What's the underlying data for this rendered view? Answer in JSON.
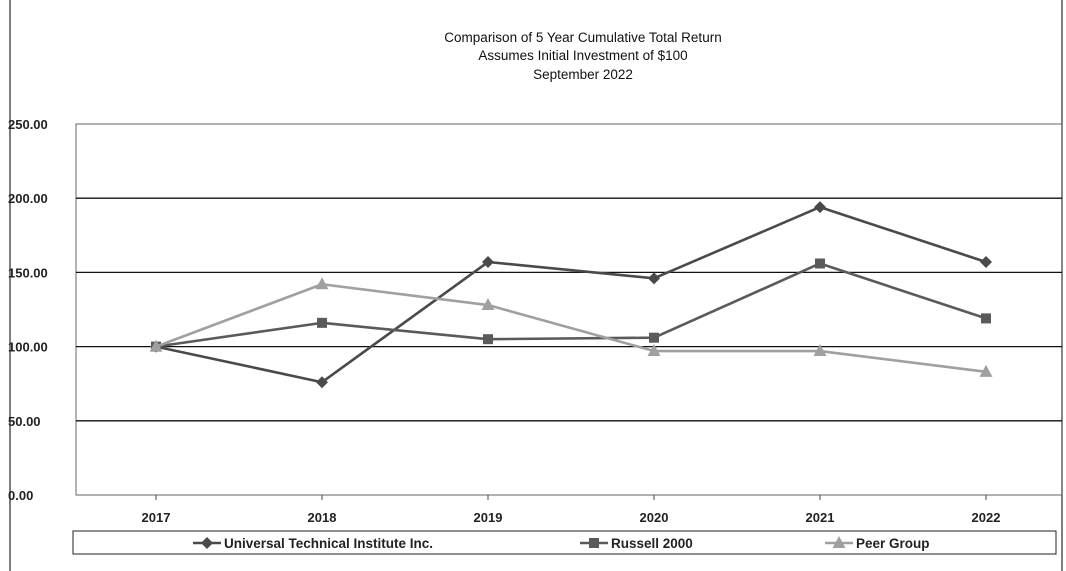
{
  "chart_data": {
    "type": "line",
    "title": [
      "Comparison of 5 Year Cumulative Total Return",
      "Assumes Initial Investment of $100",
      "September 2022"
    ],
    "categories": [
      "2017",
      "2018",
      "2019",
      "2020",
      "2021",
      "2022"
    ],
    "y_ticks": [
      "0.00",
      "50.00",
      "100.00",
      "150.00",
      "200.00",
      "250.00"
    ],
    "ylim": [
      0,
      250
    ],
    "grid": true,
    "legend": "bottom",
    "series": [
      {
        "name": "Universal Technical Institute Inc.",
        "marker": "diamond",
        "color": "#4a4a4a",
        "values": [
          100,
          76,
          157,
          146,
          194,
          157
        ]
      },
      {
        "name": "Russell 2000",
        "marker": "square",
        "color": "#5a5a5a",
        "values": [
          100,
          116,
          105,
          106,
          156,
          119
        ]
      },
      {
        "name": "Peer Group",
        "marker": "triangle",
        "color": "#a0a0a0",
        "values": [
          100,
          142,
          128,
          97,
          97,
          83
        ]
      }
    ]
  }
}
